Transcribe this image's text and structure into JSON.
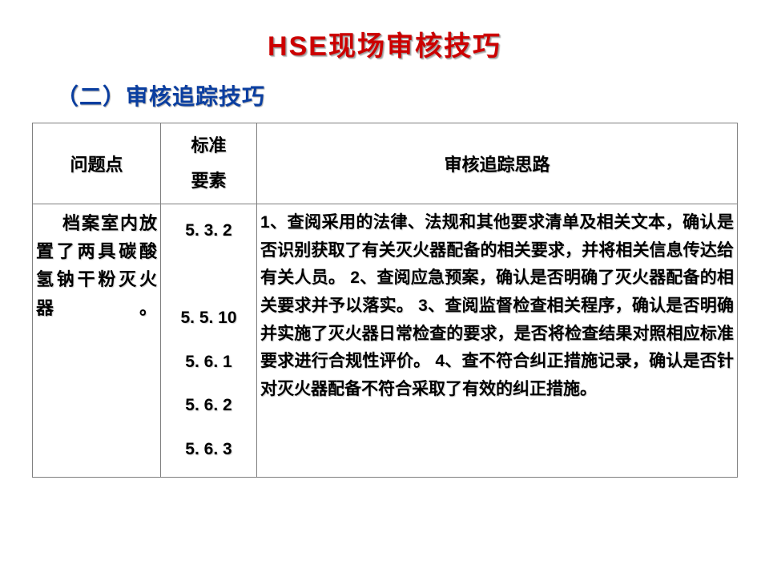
{
  "title": "HSE现场审核技巧",
  "subtitle": "（二）审核追踪技巧",
  "table": {
    "headers": {
      "problem": "问题点",
      "standard_line1": "标准",
      "standard_line2": "要素",
      "idea": "审核追踪思路"
    },
    "row": {
      "problem": "档案室内放置了两具碳酸氢钠干粉灭火器。",
      "standards": "5. 3. 2\n\n5. 5. 10\n5. 6. 1\n5. 6. 2\n5. 6. 3",
      "idea": "1、查阅采用的法律、法规和其他要求清单及相关文本，确认是否识别获取了有关灭火器配备的相关要求，并将相关信息传达给有关人员。\n2、查阅应急预案，确认是否明确了灭火器配备的相关要求并予以落实。\n3、查阅监督检查相关程序，确认是否明确并实施了灭火器日常检查的要求，是否将检查结果对照相应标准要求进行合规性评价。\n4、查不符合纠正措施记录，确认是否针对灭火器配备不符合采取了有效的纠正措施。"
    }
  },
  "colors": {
    "title_color": "#cc0000",
    "subtitle_color": "#0a3ea0",
    "border_color": "#808080",
    "text_color": "#000000",
    "background": "#ffffff"
  },
  "fonts": {
    "title_size": 34,
    "subtitle_size": 28,
    "header_size": 22,
    "body_size": 21
  }
}
